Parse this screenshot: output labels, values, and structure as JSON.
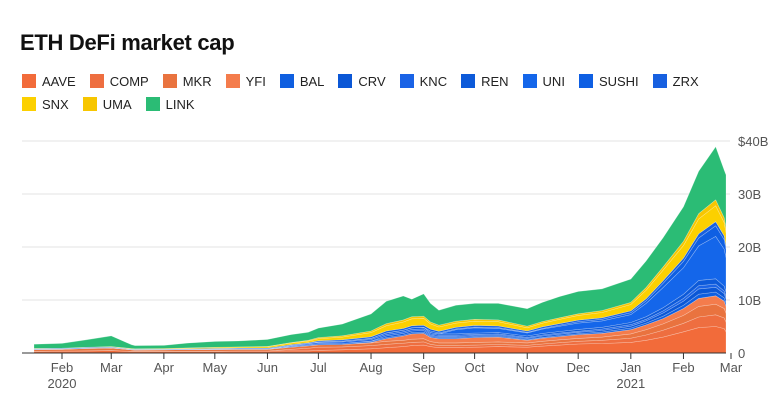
{
  "chart_data": {
    "type": "area",
    "stacked": true,
    "title": "ETH DeFi market cap",
    "xlabel": "",
    "ylabel": "",
    "ylim": [
      0,
      46
    ],
    "y_unit": "B",
    "y_ticks": [
      "0",
      "10B",
      "20B",
      "30B",
      "$40B"
    ],
    "y_tick_values": [
      0,
      10,
      20,
      30,
      40
    ],
    "x_ticks": [
      {
        "label": "Feb",
        "sub": "2020",
        "date": "2020-02-01"
      },
      {
        "label": "Mar",
        "sub": "",
        "date": "2020-03-01"
      },
      {
        "label": "Apr",
        "sub": "",
        "date": "2020-04-01"
      },
      {
        "label": "May",
        "sub": "",
        "date": "2020-05-01"
      },
      {
        "label": "Jun",
        "sub": "",
        "date": "2020-06-01"
      },
      {
        "label": "Jul",
        "sub": "",
        "date": "2020-07-01"
      },
      {
        "label": "Aug",
        "sub": "",
        "date": "2020-08-01"
      },
      {
        "label": "Sep",
        "sub": "",
        "date": "2020-09-01"
      },
      {
        "label": "Oct",
        "sub": "",
        "date": "2020-10-01"
      },
      {
        "label": "Nov",
        "sub": "",
        "date": "2020-11-01"
      },
      {
        "label": "Dec",
        "sub": "",
        "date": "2020-12-01"
      },
      {
        "label": "Jan",
        "sub": "2021",
        "date": "2021-01-01"
      },
      {
        "label": "Feb",
        "sub": "",
        "date": "2021-02-01"
      },
      {
        "label": "Mar",
        "sub": "",
        "date": "2021-03-01"
      }
    ],
    "grid": "horizontal",
    "legend_position": "top",
    "dates": [
      "2020-01-15",
      "2020-02-01",
      "2020-02-15",
      "2020-03-01",
      "2020-03-13",
      "2020-03-15",
      "2020-04-01",
      "2020-04-15",
      "2020-05-01",
      "2020-05-15",
      "2020-06-01",
      "2020-06-15",
      "2020-06-25",
      "2020-07-01",
      "2020-07-15",
      "2020-08-01",
      "2020-08-10",
      "2020-08-20",
      "2020-08-25",
      "2020-09-01",
      "2020-09-05",
      "2020-09-10",
      "2020-09-20",
      "2020-10-01",
      "2020-10-15",
      "2020-11-01",
      "2020-11-10",
      "2020-11-20",
      "2020-12-01",
      "2020-12-15",
      "2021-01-01",
      "2021-01-10",
      "2021-01-20",
      "2021-02-01",
      "2021-02-10",
      "2021-02-20",
      "2021-02-25",
      "2021-03-01"
    ],
    "series": [
      {
        "name": "AAVE",
        "color": "#f26b3a",
        "values": [
          0.3,
          0.35,
          0.4,
          0.45,
          0.3,
          0.3,
          0.3,
          0.3,
          0.3,
          0.35,
          0.35,
          0.4,
          0.4,
          0.5,
          0.6,
          0.8,
          1.0,
          1.2,
          1.4,
          1.5,
          1.2,
          1.0,
          1.0,
          1.1,
          1.2,
          1.1,
          1.3,
          1.5,
          1.7,
          1.8,
          2.0,
          2.4,
          3.0,
          4.0,
          4.8,
          5.0,
          4.6,
          4.0
        ]
      },
      {
        "name": "COMP",
        "color": "#ee6e40",
        "values": [
          0,
          0,
          0,
          0,
          0,
          0,
          0,
          0,
          0,
          0,
          0,
          0.3,
          0.5,
          0.6,
          0.55,
          0.6,
          0.65,
          0.65,
          0.6,
          0.6,
          0.45,
          0.4,
          0.4,
          0.4,
          0.4,
          0.35,
          0.4,
          0.45,
          0.5,
          0.6,
          0.8,
          1.0,
          1.3,
          1.6,
          2.0,
          2.2,
          2.0,
          1.8
        ]
      },
      {
        "name": "MKR",
        "color": "#e9733f",
        "values": [
          0.35,
          0.35,
          0.45,
          0.5,
          0.3,
          0.25,
          0.3,
          0.35,
          0.35,
          0.35,
          0.35,
          0.4,
          0.45,
          0.45,
          0.45,
          0.5,
          0.55,
          0.55,
          0.6,
          0.6,
          0.5,
          0.5,
          0.5,
          0.5,
          0.5,
          0.45,
          0.5,
          0.55,
          0.55,
          0.6,
          0.8,
          1.0,
          1.2,
          1.5,
          2.0,
          2.0,
          1.8,
          1.7
        ]
      },
      {
        "name": "YFI",
        "color": "#f47c4c",
        "values": [
          0,
          0,
          0,
          0,
          0,
          0,
          0,
          0,
          0,
          0,
          0,
          0,
          0,
          0,
          0,
          0.1,
          0.5,
          0.8,
          1.0,
          1.0,
          0.8,
          0.8,
          0.8,
          0.9,
          0.9,
          0.5,
          0.6,
          0.6,
          0.7,
          0.7,
          0.8,
          0.9,
          1.0,
          1.3,
          1.5,
          1.6,
          1.4,
          1.3
        ]
      },
      {
        "name": "BAL",
        "color": "#0f5fe0",
        "values": [
          0,
          0,
          0,
          0,
          0,
          0,
          0,
          0,
          0,
          0,
          0,
          0.15,
          0.2,
          0.2,
          0.2,
          0.2,
          0.2,
          0.2,
          0.25,
          0.25,
          0.2,
          0.2,
          0.2,
          0.2,
          0.2,
          0.15,
          0.15,
          0.2,
          0.2,
          0.25,
          0.3,
          0.35,
          0.45,
          0.6,
          0.8,
          0.7,
          0.6,
          0.6
        ]
      },
      {
        "name": "CRV",
        "color": "#0b57d6",
        "values": [
          0,
          0,
          0,
          0,
          0,
          0,
          0,
          0,
          0,
          0,
          0,
          0,
          0,
          0,
          0,
          0.05,
          0.3,
          0.3,
          0.3,
          0.3,
          0.2,
          0.2,
          0.2,
          0.2,
          0.2,
          0.2,
          0.25,
          0.25,
          0.25,
          0.3,
          0.35,
          0.4,
          0.6,
          0.8,
          1.0,
          0.9,
          0.8,
          0.8
        ]
      },
      {
        "name": "KNC",
        "color": "#1a63e6",
        "values": [
          0.05,
          0.05,
          0.05,
          0.05,
          0.05,
          0.05,
          0.05,
          0.05,
          0.1,
          0.1,
          0.1,
          0.15,
          0.2,
          0.25,
          0.3,
          0.3,
          0.3,
          0.3,
          0.3,
          0.3,
          0.25,
          0.25,
          0.25,
          0.2,
          0.2,
          0.2,
          0.2,
          0.2,
          0.2,
          0.25,
          0.3,
          0.3,
          0.4,
          0.5,
          0.6,
          0.6,
          0.5,
          0.5
        ]
      },
      {
        "name": "REN",
        "color": "#0d5ad9",
        "values": [
          0.01,
          0.01,
          0.01,
          0.01,
          0.01,
          0.01,
          0.01,
          0.01,
          0.02,
          0.02,
          0.02,
          0.03,
          0.05,
          0.1,
          0.15,
          0.2,
          0.3,
          0.3,
          0.3,
          0.3,
          0.25,
          0.25,
          0.25,
          0.25,
          0.25,
          0.25,
          0.3,
          0.3,
          0.35,
          0.35,
          0.4,
          0.5,
          0.6,
          0.8,
          1.0,
          1.0,
          0.9,
          0.8
        ]
      },
      {
        "name": "UNI",
        "color": "#1466ea",
        "values": [
          0,
          0,
          0,
          0,
          0,
          0,
          0,
          0,
          0,
          0,
          0,
          0,
          0,
          0,
          0,
          0,
          0,
          0,
          0,
          0,
          0,
          0,
          0.8,
          1.0,
          0.8,
          0.6,
          0.8,
          1.0,
          1.2,
          1.2,
          1.5,
          2.5,
          3.8,
          5.0,
          6.5,
          8.0,
          7.0,
          6.5
        ]
      },
      {
        "name": "SUSHI",
        "color": "#0e5fe3",
        "values": [
          0,
          0,
          0,
          0,
          0,
          0,
          0,
          0,
          0,
          0,
          0,
          0,
          0,
          0,
          0,
          0,
          0,
          0,
          0,
          0,
          0.3,
          0.2,
          0.15,
          0.15,
          0.15,
          0.1,
          0.15,
          0.2,
          0.25,
          0.3,
          0.35,
          0.5,
          0.8,
          1.2,
          1.5,
          2.0,
          1.8,
          1.6
        ]
      },
      {
        "name": "ZRX",
        "color": "#1760e0",
        "values": [
          0.1,
          0.1,
          0.12,
          0.12,
          0.08,
          0.08,
          0.08,
          0.1,
          0.1,
          0.12,
          0.12,
          0.15,
          0.15,
          0.2,
          0.25,
          0.3,
          0.35,
          0.35,
          0.4,
          0.4,
          0.35,
          0.3,
          0.3,
          0.3,
          0.3,
          0.25,
          0.3,
          0.3,
          0.3,
          0.3,
          0.35,
          0.4,
          0.5,
          0.6,
          0.8,
          0.8,
          0.7,
          0.7
        ]
      },
      {
        "name": "SNX",
        "color": "#fcd000",
        "values": [
          0.05,
          0.05,
          0.05,
          0.1,
          0.1,
          0.1,
          0.1,
          0.15,
          0.2,
          0.2,
          0.25,
          0.3,
          0.3,
          0.4,
          0.5,
          0.8,
          1.0,
          1.2,
          1.3,
          1.3,
          1.0,
          0.8,
          0.8,
          0.8,
          0.8,
          0.6,
          0.7,
          0.8,
          0.9,
          1.0,
          1.2,
          1.6,
          2.0,
          2.4,
          2.8,
          3.0,
          2.5,
          2.4
        ]
      },
      {
        "name": "UMA",
        "color": "#f7c600",
        "values": [
          0,
          0,
          0,
          0,
          0,
          0,
          0,
          0,
          0,
          0.02,
          0.05,
          0.1,
          0.15,
          0.2,
          0.25,
          0.3,
          0.4,
          0.4,
          0.4,
          0.4,
          0.35,
          0.35,
          0.35,
          0.35,
          0.35,
          0.3,
          0.3,
          0.3,
          0.3,
          0.35,
          0.4,
          0.5,
          0.6,
          0.8,
          1.0,
          1.1,
          0.9,
          0.9
        ]
      },
      {
        "name": "LINK",
        "color": "#2bbc75",
        "values": [
          0.8,
          0.9,
          1.4,
          2.0,
          0.7,
          0.6,
          0.6,
          0.9,
          1.1,
          1.1,
          1.3,
          1.5,
          1.5,
          1.8,
          2.2,
          3.2,
          4.2,
          4.5,
          3.3,
          4.2,
          3.5,
          2.8,
          3.0,
          3.0,
          3.1,
          3.3,
          3.6,
          4.0,
          4.2,
          4.1,
          4.4,
          5.0,
          5.5,
          6.5,
          8.0,
          10.0,
          9.0,
          10.0
        ]
      }
    ]
  }
}
